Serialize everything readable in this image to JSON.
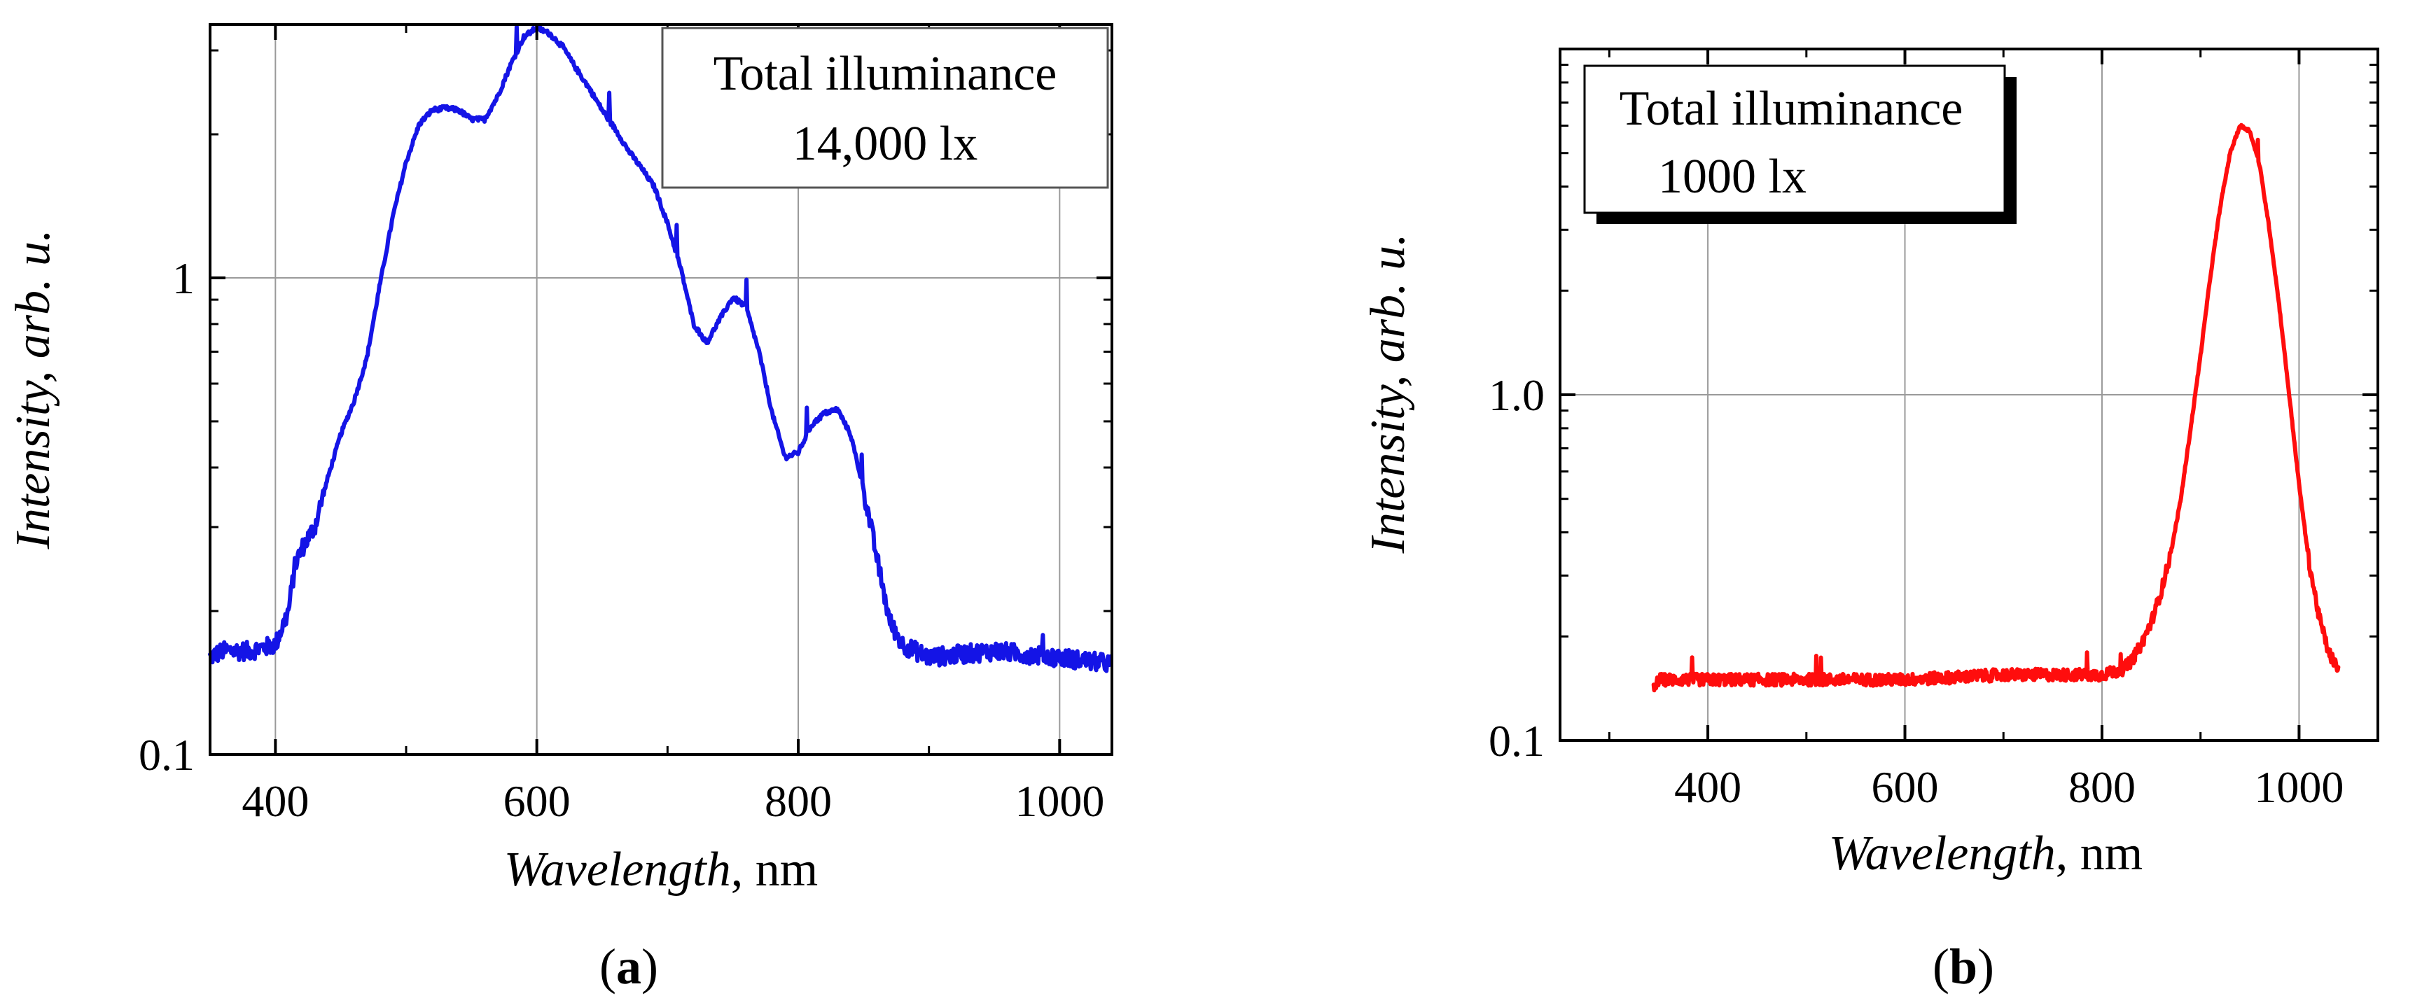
{
  "chart_data": [
    {
      "type": "line",
      "panel_label": "a",
      "title": "",
      "xlabel": "Wavelength",
      "xlabel_unit": ", nm",
      "ylabel": "Intensity",
      "ylabel_unit": ", arb. u.",
      "xlim": [
        350,
        1040
      ],
      "ylim": [
        0.1,
        3.4
      ],
      "yscale": "log",
      "x_ticks": [
        400,
        600,
        800,
        1000
      ],
      "x_tick_labels": [
        "400",
        "600",
        "800",
        "1000"
      ],
      "y_ticks": [
        0.1,
        1
      ],
      "y_tick_labels": [
        "0.1",
        "1"
      ],
      "grid": true,
      "legend_box": {
        "line1": "Total illuminance",
        "line2": "14,000 lx",
        "placement": "top-right"
      },
      "series": [
        {
          "name": "spectrum",
          "color": "#1414e6",
          "noise": 0.045,
          "x": [
            350,
            360,
            380,
            400,
            410,
            415,
            420,
            430,
            440,
            450,
            460,
            470,
            480,
            490,
            500,
            510,
            520,
            530,
            540,
            550,
            560,
            570,
            580,
            590,
            600,
            610,
            620,
            630,
            640,
            650,
            660,
            670,
            680,
            690,
            700,
            710,
            720,
            730,
            740,
            750,
            760,
            770,
            780,
            790,
            800,
            810,
            820,
            830,
            840,
            850,
            860,
            870,
            880,
            890,
            900,
            950,
            1000,
            1040
          ],
          "y": [
            0.16,
            0.165,
            0.165,
            0.17,
            0.2,
            0.25,
            0.27,
            0.3,
            0.38,
            0.47,
            0.55,
            0.68,
            0.97,
            1.35,
            1.75,
            2.1,
            2.25,
            2.27,
            2.25,
            2.15,
            2.15,
            2.4,
            2.8,
            3.2,
            3.35,
            3.25,
            3.05,
            2.75,
            2.5,
            2.25,
            2.05,
            1.85,
            1.7,
            1.55,
            1.3,
            1.05,
            0.8,
            0.73,
            0.82,
            0.91,
            0.87,
            0.7,
            0.52,
            0.42,
            0.43,
            0.49,
            0.52,
            0.53,
            0.47,
            0.36,
            0.26,
            0.19,
            0.17,
            0.165,
            0.16,
            0.165,
            0.16,
            0.155
          ]
        }
      ]
    },
    {
      "type": "line",
      "panel_label": "b",
      "title": "",
      "xlabel": "Wavelength",
      "xlabel_unit": ", nm",
      "ylabel": "Intensity",
      "ylabel_unit": ", arb. u.",
      "xlim": [
        250,
        1080
      ],
      "ylim": [
        0.1,
        10
      ],
      "yscale": "log",
      "x_ticks": [
        400,
        600,
        800,
        1000
      ],
      "x_tick_labels": [
        "400",
        "600",
        "800",
        "1000"
      ],
      "y_ticks": [
        0.1,
        1
      ],
      "y_tick_labels": [
        "0.1",
        "1.0"
      ],
      "grid": true,
      "legend_box": {
        "line1": "Total illuminance",
        "line2": "1000 lx",
        "placement": "top-left"
      },
      "series": [
        {
          "name": "spectrum",
          "color": "#ff0d0d",
          "noise": 0.04,
          "x": [
            345,
            350,
            400,
            500,
            600,
            700,
            800,
            820,
            830,
            840,
            850,
            860,
            870,
            880,
            890,
            900,
            910,
            920,
            930,
            940,
            950,
            960,
            970,
            980,
            990,
            1000,
            1010,
            1020,
            1030,
            1040
          ],
          "y": [
            0.14,
            0.15,
            0.15,
            0.15,
            0.15,
            0.155,
            0.155,
            0.16,
            0.17,
            0.19,
            0.22,
            0.27,
            0.35,
            0.5,
            0.8,
            1.3,
            2.2,
            3.5,
            5.0,
            6.0,
            5.8,
            4.6,
            3.0,
            1.8,
            1.0,
            0.55,
            0.33,
            0.23,
            0.18,
            0.16
          ]
        }
      ]
    }
  ]
}
